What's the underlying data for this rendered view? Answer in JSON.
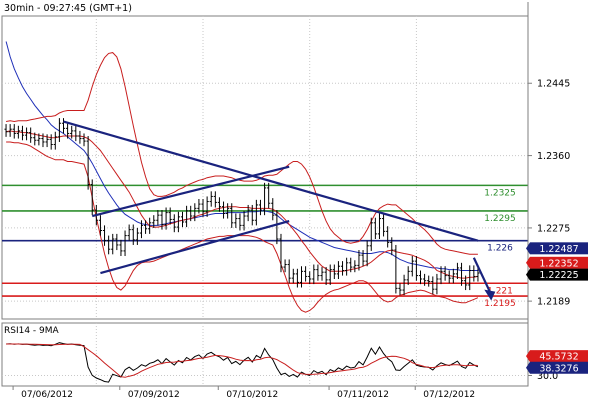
{
  "chart_data": [
    {
      "type": "line",
      "panel": "price",
      "title": "30min - 09:27:45 (GMT+1)",
      "x_tick_labels": [
        "07/06/2012",
        "07/09/2012",
        "07/10/2012",
        "07/11/2012",
        "07/12/2012"
      ],
      "y_tick_labels": [
        "1.2445",
        "1.2360",
        "1.2275",
        "1.2189"
      ],
      "ylim": [
        1.2168,
        1.2524
      ],
      "grid": true,
      "legend": "none",
      "series": [
        {
          "type": "ohlc",
          "color": "#000000",
          "close": [
            1.2388,
            1.2391,
            1.2386,
            1.2389,
            1.2384,
            1.2387,
            1.2381,
            1.2378,
            1.238,
            1.2376,
            1.2379,
            1.2373,
            1.2382,
            1.2398,
            1.2392,
            1.2386,
            1.2389,
            1.2383,
            1.238,
            1.2377,
            1.2326,
            1.2296,
            1.2284,
            1.2272,
            1.226,
            1.225,
            1.2262,
            1.2255,
            1.2248,
            1.2266,
            1.2273,
            1.2261,
            1.2269,
            1.2278,
            1.2274,
            1.2281,
            1.2284,
            1.229,
            1.2279,
            1.2293,
            1.2285,
            1.2276,
            1.2288,
            1.2282,
            1.2295,
            1.2289,
            1.2298,
            1.2303,
            1.2294,
            1.2306,
            1.2312,
            1.2305,
            1.23,
            1.2292,
            1.2298,
            1.2281,
            1.2286,
            1.2278,
            1.2289,
            1.2296,
            1.2284,
            1.2302,
            1.2296,
            1.2322,
            1.2304,
            1.229,
            1.2262,
            1.2229,
            1.2232,
            1.2216,
            1.2221,
            1.2211,
            1.2224,
            1.2218,
            1.2215,
            1.2226,
            1.2219,
            1.2223,
            1.2214,
            1.2226,
            1.2221,
            1.223,
            1.2225,
            1.2234,
            1.2229,
            1.2231,
            1.2243,
            1.2236,
            1.2254,
            1.2281,
            1.2268,
            1.2286,
            1.2271,
            1.2258,
            1.2249,
            1.2204,
            1.2202,
            1.2214,
            1.2224,
            1.2236,
            1.2219,
            1.2215,
            1.2213,
            1.2212,
            1.2203,
            1.2215,
            1.2224,
            1.2219,
            1.2216,
            1.2221,
            1.2228,
            1.2213,
            1.2208,
            1.2225,
            1.2218,
            1.2222
          ]
        },
        {
          "name": "",
          "color": "#1f2fb8",
          "role": "moving-average",
          "values": [
            1.2494,
            1.2476,
            1.2462,
            1.2451,
            1.2441,
            1.2433,
            1.2426,
            1.2419,
            1.2413,
            1.2407,
            1.2402,
            1.2396,
            1.2392,
            1.2389,
            1.2386,
            1.2382,
            1.2378,
            1.2374,
            1.237,
            1.2366,
            1.2359,
            1.2351,
            1.2342,
            1.2333,
            1.2324,
            1.2316,
            1.2309,
            1.2302,
            1.2296,
            1.2291,
            1.2288,
            1.2285,
            1.2282,
            1.228,
            1.2279,
            1.2278,
            1.2278,
            1.2278,
            1.2279,
            1.228,
            1.2281,
            1.2282,
            1.2283,
            1.2284,
            1.2285,
            1.2286,
            1.2287,
            1.2288,
            1.2289,
            1.229,
            1.2291,
            1.2292,
            1.2292,
            1.2292,
            1.2293,
            1.2293,
            1.2293,
            1.2293,
            1.2293,
            1.2294,
            1.2294,
            1.2294,
            1.2295,
            1.2295,
            1.2294,
            1.2293,
            1.229,
            1.2286,
            1.2282,
            1.2279,
            1.2276,
            1.2273,
            1.227,
            1.2267,
            1.2264,
            1.2262,
            1.226,
            1.2258,
            1.2256,
            1.2254,
            1.2252,
            1.2251,
            1.225,
            1.2249,
            1.2248,
            1.2247,
            1.2246,
            1.2245,
            1.2245,
            1.2245,
            1.2246,
            1.2247,
            1.2247,
            1.2246,
            1.2244,
            1.2241,
            1.2238,
            1.2236,
            1.2234,
            1.2233,
            1.2232,
            1.2231,
            1.223,
            1.2229,
            1.2228,
            1.2228,
            1.2227,
            1.2227,
            1.2226,
            1.2226,
            1.2226,
            1.2225,
            1.2225,
            1.2225,
            1.2225,
            1.2225
          ]
        },
        {
          "name": "",
          "color": "#c81e1e",
          "role": "bollinger-middle",
          "values": [
            1.2388,
            1.2389,
            1.2388,
            1.2388,
            1.2387,
            1.2387,
            1.2386,
            1.2385,
            1.2384,
            1.2383,
            1.2382,
            1.2381,
            1.2381,
            1.2382,
            1.2383,
            1.2383,
            1.2383,
            1.2383,
            1.2383,
            1.2382,
            1.238,
            1.2376,
            1.2371,
            1.2366,
            1.2359,
            1.2352,
            1.2345,
            1.2338,
            1.2331,
            1.2324,
            1.2317,
            1.2308,
            1.2299,
            1.229,
            1.2283,
            1.2277,
            1.2276,
            1.2276,
            1.2277,
            1.2278,
            1.228,
            1.2281,
            1.2283,
            1.2284,
            1.2285,
            1.2286,
            1.2288,
            1.229,
            1.2291,
            1.2293,
            1.2295,
            1.2297,
            1.2298,
            1.2299,
            1.23,
            1.23,
            1.23,
            1.2299,
            1.2299,
            1.2299,
            1.2298,
            1.2298,
            1.2298,
            1.2298,
            1.2298,
            1.2297,
            1.2294,
            1.229,
            1.2285,
            1.2279,
            1.2273,
            1.2267,
            1.226,
            1.2254,
            1.2247,
            1.2241,
            1.2235,
            1.223,
            1.2227,
            1.2224,
            1.2224,
            1.2224,
            1.2224,
            1.2225,
            1.2226,
            1.2227,
            1.2228,
            1.223,
            1.2232,
            1.2235,
            1.2239,
            1.2243,
            1.2246,
            1.2248,
            1.2249,
            1.2247,
            1.2246,
            1.2245,
            1.2244,
            1.2243,
            1.2241,
            1.2239,
            1.2237,
            1.2234,
            1.223,
            1.2225,
            1.2223,
            1.2221,
            1.2219,
            1.2218,
            1.2217,
            1.2216,
            1.2216,
            1.2217,
            1.2217,
            1.2218
          ]
        },
        {
          "name": "",
          "color": "#c81e1e",
          "role": "bollinger-upper",
          "values": [
            1.24,
            1.2401,
            1.24,
            1.2401,
            1.2401,
            1.2401,
            1.2402,
            1.2403,
            1.2404,
            1.2405,
            1.2406,
            1.2406,
            1.2407,
            1.241,
            1.2412,
            1.2413,
            1.2413,
            1.2413,
            1.2413,
            1.2413,
            1.2425,
            1.2441,
            1.2455,
            1.2466,
            1.2475,
            1.248,
            1.2481,
            1.2476,
            1.2462,
            1.2441,
            1.2418,
            1.2395,
            1.2373,
            1.2352,
            1.2335,
            1.2321,
            1.2314,
            1.2312,
            1.2312,
            1.2313,
            1.2315,
            1.2317,
            1.232,
            1.2322,
            1.2325,
            1.2327,
            1.2329,
            1.2331,
            1.2332,
            1.2334,
            1.2335,
            1.2336,
            1.2336,
            1.2336,
            1.2335,
            1.2334,
            1.2332,
            1.2331,
            1.233,
            1.233,
            1.233,
            1.2331,
            1.2333,
            1.2336,
            1.2337,
            1.2337,
            1.2338,
            1.2342,
            1.2346,
            1.235,
            1.2353,
            1.2353,
            1.235,
            1.2344,
            1.2335,
            1.2323,
            1.2309,
            1.2295,
            1.2283,
            1.2274,
            1.2268,
            1.2264,
            1.226,
            1.2258,
            1.2257,
            1.2258,
            1.2259,
            1.2265,
            1.2273,
            1.2283,
            1.2292,
            1.2298,
            1.2301,
            1.2303,
            1.2302,
            1.2302,
            1.2298,
            1.2294,
            1.229,
            1.2286,
            1.2281,
            1.2277,
            1.2273,
            1.2268,
            1.2262,
            1.2256,
            1.2252,
            1.225,
            1.2249,
            1.2248,
            1.2247,
            1.2246,
            1.2245,
            1.2244,
            1.2244,
            1.2244
          ]
        },
        {
          "name": "",
          "color": "#c81e1e",
          "role": "bollinger-lower",
          "values": [
            1.2376,
            1.2376,
            1.2375,
            1.2375,
            1.2374,
            1.2373,
            1.2371,
            1.2368,
            1.2365,
            1.2362,
            1.2359,
            1.2357,
            1.2355,
            1.2355,
            1.2355,
            1.2353,
            1.2353,
            1.2352,
            1.2351,
            1.235,
            1.2335,
            1.2311,
            1.2287,
            1.2266,
            1.2245,
            1.2228,
            1.2214,
            1.2205,
            1.2202,
            1.2207,
            1.2216,
            1.2225,
            1.2231,
            1.2234,
            1.2235,
            1.2235,
            1.2236,
            1.2238,
            1.224,
            1.2242,
            1.2244,
            1.2246,
            1.2248,
            1.225,
            1.2252,
            1.2254,
            1.2256,
            1.2258,
            1.226,
            1.2262,
            1.2263,
            1.2264,
            1.2265,
            1.2265,
            1.2266,
            1.2266,
            1.2266,
            1.2266,
            1.2266,
            1.2266,
            1.2265,
            1.2264,
            1.2262,
            1.2259,
            1.2257,
            1.2255,
            1.2245,
            1.2232,
            1.2219,
            1.2205,
            1.2193,
            1.2184,
            1.2178,
            1.2176,
            1.2178,
            1.2182,
            1.2188,
            1.2193,
            1.2197,
            1.22,
            1.2202,
            1.2203,
            1.2205,
            1.2207,
            1.2209,
            1.2211,
            1.2213,
            1.2213,
            1.2211,
            1.2206,
            1.22,
            1.2194,
            1.219,
            1.2188,
            1.2189,
            1.2193,
            1.2196,
            1.2197,
            1.2199,
            1.22,
            1.2201,
            1.2202,
            1.2201,
            1.2199,
            1.2197,
            1.2195,
            1.2194,
            1.2193,
            1.2191,
            1.2189,
            1.2188,
            1.2187,
            1.2187,
            1.2189,
            1.2191,
            1.2193
          ]
        }
      ],
      "horizontal_levels": [
        {
          "value": 1.2325,
          "label": "1.2325",
          "color": "#2f8f2f",
          "label_color": "#2f8f2f"
        },
        {
          "value": 1.2295,
          "label": "1.2295",
          "color": "#2f8f2f",
          "label_color": "#2f8f2f"
        },
        {
          "value": 1.226,
          "label": "1.226",
          "color": "#1a237e",
          "label_color": "#1a237e"
        },
        {
          "value": 1.221,
          "label": "1.221",
          "color": "#d81b1b",
          "label_color": "#d81b1b"
        },
        {
          "value": 1.2195,
          "label": "1.2195",
          "color": "#d81b1b",
          "label_color": "#d81b1b"
        }
      ],
      "trendlines": [
        {
          "from": [
            14,
            1.24
          ],
          "to": [
            115,
            1.226
          ],
          "color": "#1a237e"
        },
        {
          "from": [
            23,
            1.2222
          ],
          "to": [
            69,
            1.2283
          ],
          "color": "#1a237e"
        },
        {
          "from": [
            21,
            1.2289
          ],
          "to": [
            69,
            1.2347
          ],
          "color": "#1a237e"
        }
      ],
      "price_flags": [
        {
          "label": "1.22487",
          "bg": "#1a237e",
          "fg": "#ffffff"
        },
        {
          "label": "1.22352",
          "bg": "#d81b1b",
          "fg": "#ffffff",
          "value": 1.22352
        },
        {
          "label": "1.22225",
          "bg": "#000000",
          "fg": "#ffffff",
          "value": 1.22225
        }
      ],
      "projection_arrow": {
        "from": [
          114,
          1.224
        ],
        "to": [
          118,
          1.2192
        ],
        "color": "#1a237e"
      }
    },
    {
      "type": "line",
      "panel": "indicator",
      "title": "RSI14 - 9MA",
      "y_tick_labels": [
        "30.0"
      ],
      "ylim": [
        20,
        80
      ],
      "value_flags": [
        {
          "label": "45.5732",
          "bg": "#d81b1b",
          "fg": "#ffffff",
          "value": 45.5732
        },
        {
          "label": "38.3276",
          "bg": "#1a237e",
          "fg": "#ffffff",
          "value": 38.3276
        }
      ],
      "series": [
        {
          "name": "",
          "color": "#000000",
          "role": "rsi",
          "values": [
            60.0,
            60.2,
            59.8,
            60.1,
            59.6,
            59.9,
            59.3,
            58.9,
            59.2,
            58.7,
            59.0,
            58.4,
            59.7,
            61.2,
            60.4,
            59.6,
            60.0,
            59.3,
            58.9,
            58.5,
            38.0,
            30.2,
            27.6,
            26.1,
            24.3,
            23.7,
            31.2,
            29.8,
            28.6,
            35.5,
            38.0,
            34.9,
            37.1,
            40.3,
            38.9,
            41.6,
            42.8,
            45.0,
            41.2,
            46.1,
            43.0,
            39.9,
            44.3,
            42.2,
            47.1,
            44.8,
            48.0,
            49.6,
            46.1,
            50.4,
            52.1,
            49.3,
            47.8,
            44.6,
            47.1,
            41.3,
            43.4,
            40.4,
            44.7,
            47.3,
            42.9,
            49.1,
            46.8,
            55.8,
            49.5,
            45.1,
            37.0,
            30.9,
            32.2,
            29.1,
            31.0,
            28.5,
            33.2,
            31.1,
            30.1,
            34.7,
            32.4,
            34.0,
            30.8,
            35.6,
            33.8,
            37.2,
            35.4,
            39.0,
            37.1,
            37.9,
            43.2,
            40.1,
            47.6,
            56.0,
            50.3,
            57.1,
            50.9,
            46.2,
            43.1,
            35.2,
            34.9,
            38.6,
            41.6,
            45.0,
            39.8,
            38.7,
            38.1,
            37.8,
            35.2,
            39.3,
            42.1,
            40.5,
            39.4,
            41.4,
            43.7,
            38.6,
            36.9,
            42.5,
            40.1,
            38.3
          ]
        },
        {
          "name": "",
          "color": "#c81e1e",
          "role": "rsi-ma",
          "values": [
            60.0,
            60.0,
            60.0,
            60.0,
            59.9,
            59.9,
            59.8,
            59.7,
            59.6,
            59.5,
            59.4,
            59.3,
            59.3,
            59.5,
            59.6,
            59.7,
            59.8,
            59.7,
            59.6,
            57.4,
            54.6,
            51.8,
            48.9,
            45.4,
            41.9,
            38.7,
            35.4,
            32.2,
            28.9,
            28.3,
            29.3,
            30.2,
            31.9,
            34.1,
            35.9,
            37.5,
            39.1,
            40.7,
            41.4,
            42.4,
            42.6,
            42.8,
            43.4,
            43.5,
            44.2,
            44.6,
            45.4,
            46.3,
            46.7,
            47.4,
            48.3,
            49.1,
            49.0,
            48.5,
            47.7,
            46.8,
            45.5,
            44.7,
            44.2,
            44.3,
            43.9,
            45.0,
            45.5,
            46.9,
            47.4,
            46.5,
            45.1,
            42.9,
            40.8,
            37.9,
            35.1,
            32.8,
            31.6,
            31.2,
            31.0,
            31.1,
            31.4,
            32.0,
            32.1,
            32.8,
            33.4,
            34.0,
            34.6,
            35.1,
            35.6,
            36.2,
            37.3,
            37.9,
            39.3,
            41.7,
            43.6,
            45.7,
            47.1,
            47.9,
            48.4,
            48.2,
            47.2,
            46.4,
            44.8,
            42.2,
            40.7,
            39.6,
            38.5,
            37.7,
            37.5,
            38.2,
            39.3,
            39.8,
            39.9,
            40.2,
            40.3,
            39.8,
            39.3,
            39.6,
            39.8,
            39.5
          ]
        }
      ]
    }
  ]
}
